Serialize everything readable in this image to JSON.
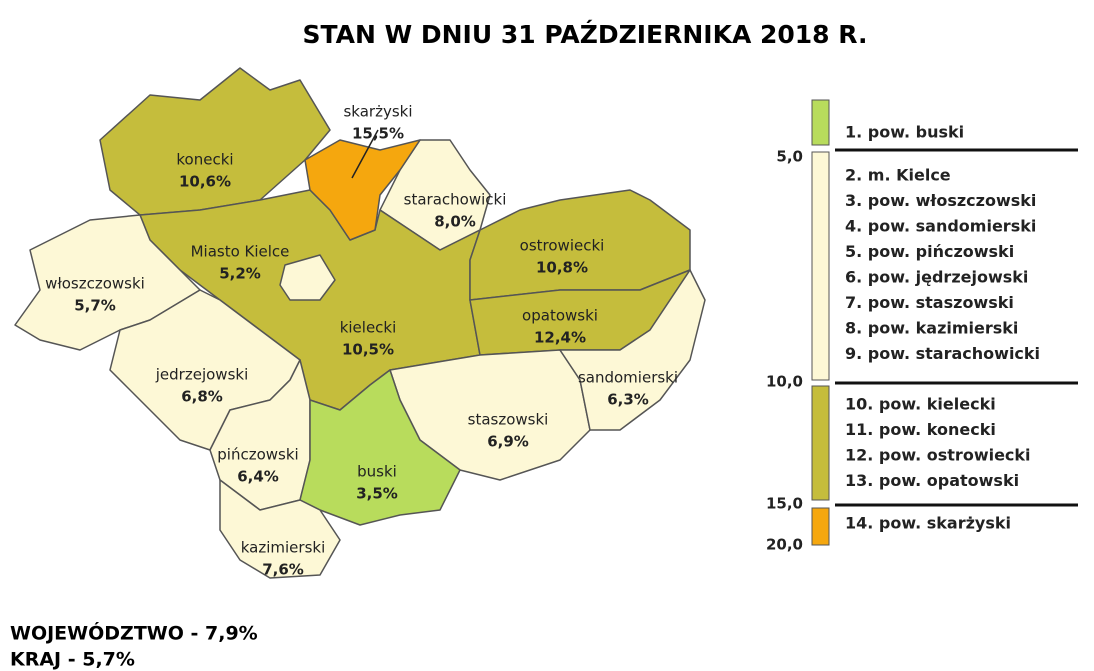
{
  "title": "STAN W DNIU 31 PAŹDZIERNIKA 2018 R.",
  "regions": [
    {
      "name": "konecki",
      "value": "10,6%"
    },
    {
      "name": "skarżyski",
      "value": "15,5%"
    },
    {
      "name": "starachowicki",
      "value": "8,0%"
    },
    {
      "name": "ostrowiecki",
      "value": "10,8%"
    },
    {
      "name": "opatowski",
      "value": "12,4%"
    },
    {
      "name": "Miasto Kielce",
      "value": "5,2%"
    },
    {
      "name": "kielecki",
      "value": "10,5%"
    },
    {
      "name": "włoszczowski",
      "value": "5,7%"
    },
    {
      "name": "jedrzejowski",
      "value": "6,8%"
    },
    {
      "name": "sandomierski",
      "value": "6,3%"
    },
    {
      "name": "staszowski",
      "value": "6,9%"
    },
    {
      "name": "pińczowski",
      "value": "6,4%"
    },
    {
      "name": "buski",
      "value": "3,5%"
    },
    {
      "name": "kazimierski",
      "value": "7,6%"
    }
  ],
  "legend": {
    "breaks": [
      "5,0",
      "10,0",
      "15,0",
      "20,0"
    ],
    "classes": [
      {
        "color": "#b8dc5c",
        "items": [
          "1. pow. buski"
        ]
      },
      {
        "color": "#fdf8d6",
        "items": [
          "2. m. Kielce",
          "3. pow. włoszczowski",
          "4. pow. sandomierski",
          "5. pow. pińczowski",
          "6. pow. jędrzejowski",
          "7. pow. staszowski",
          "8. pow. kazimierski",
          "9. pow. starachowicki"
        ]
      },
      {
        "color": "#c5bd3c",
        "items": [
          "10. pow. kielecki",
          "11. pow. konecki",
          "12. pow. ostrowiecki",
          "13. pow. opatowski"
        ]
      },
      {
        "color": "#f5a70e",
        "items": [
          "14. pow. skarżyski"
        ]
      }
    ]
  },
  "footer": [
    "WOJEWÓDZTWO - 7,9%",
    "KRAJ - 5,7%"
  ]
}
